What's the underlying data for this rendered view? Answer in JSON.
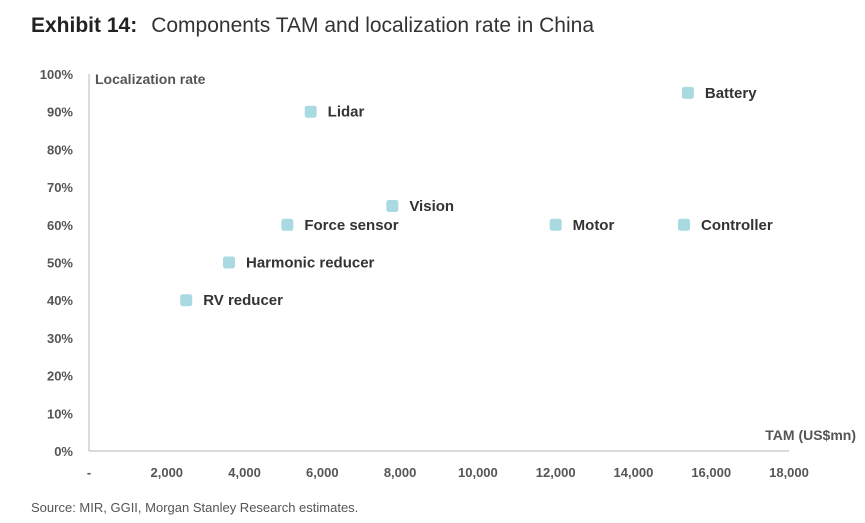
{
  "header": {
    "exhibit": "Exhibit 14:",
    "title": "Components TAM and localization rate in China"
  },
  "footer": {
    "source": "Source: MIR, GGII, Morgan Stanley Research estimates."
  },
  "colors": {
    "marker": "#a9d9e1",
    "axis": "#c4c4c4",
    "text": "#333333",
    "tick": "#555555"
  },
  "chart_data": {
    "type": "scatter",
    "title": "Components TAM and localization rate in China",
    "xlabel": "TAM (US$mn)",
    "ylabel": "Localization rate",
    "xlim": [
      0,
      18000
    ],
    "ylim": [
      0,
      1
    ],
    "grid": false,
    "x_ticks": [
      {
        "value": 0,
        "label": "-"
      },
      {
        "value": 2000,
        "label": "2,000"
      },
      {
        "value": 4000,
        "label": "4,000"
      },
      {
        "value": 6000,
        "label": "6,000"
      },
      {
        "value": 8000,
        "label": "8,000"
      },
      {
        "value": 10000,
        "label": "10,000"
      },
      {
        "value": 12000,
        "label": "12,000"
      },
      {
        "value": 14000,
        "label": "14,000"
      },
      {
        "value": 16000,
        "label": "16,000"
      },
      {
        "value": 18000,
        "label": "18,000"
      }
    ],
    "y_ticks": [
      {
        "value": 0,
        "label": "0%"
      },
      {
        "value": 0.1,
        "label": "10%"
      },
      {
        "value": 0.2,
        "label": "20%"
      },
      {
        "value": 0.3,
        "label": "30%"
      },
      {
        "value": 0.4,
        "label": "40%"
      },
      {
        "value": 0.5,
        "label": "50%"
      },
      {
        "value": 0.6,
        "label": "60%"
      },
      {
        "value": 0.7,
        "label": "70%"
      },
      {
        "value": 0.8,
        "label": "80%"
      },
      {
        "value": 0.9,
        "label": "90%"
      },
      {
        "value": 1.0,
        "label": "100%"
      }
    ],
    "points": [
      {
        "name": "Lidar",
        "x": 5700,
        "y": 0.9
      },
      {
        "name": "Battery",
        "x": 15400,
        "y": 0.95
      },
      {
        "name": "Vision",
        "x": 7800,
        "y": 0.65
      },
      {
        "name": "Force sensor",
        "x": 5100,
        "y": 0.6
      },
      {
        "name": "Motor",
        "x": 12000,
        "y": 0.6
      },
      {
        "name": "Controller",
        "x": 15300,
        "y": 0.6
      },
      {
        "name": "Harmonic reducer",
        "x": 3600,
        "y": 0.5
      },
      {
        "name": "RV reducer",
        "x": 2500,
        "y": 0.4
      }
    ]
  }
}
